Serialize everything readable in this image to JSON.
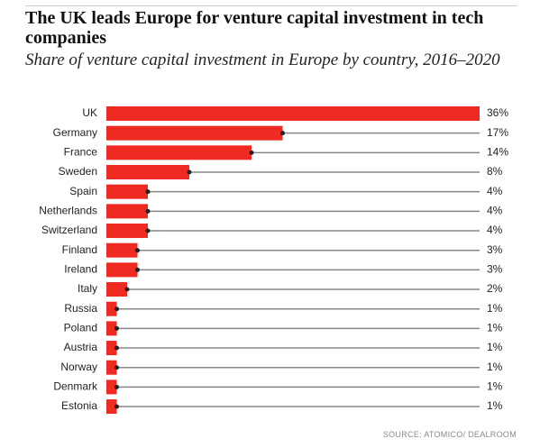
{
  "chart_data": {
    "type": "bar",
    "orientation": "horizontal",
    "title": "The UK leads Europe for venture capital investment in tech companies",
    "subtitle": "Share of venture capital investment in Europe by country, 2016–2020",
    "source": "SOURCE: ATOMICO/ DEALROOM",
    "categories": [
      "UK",
      "Germany",
      "France",
      "Sweden",
      "Spain",
      "Netherlands",
      "Switzerland",
      "Finland",
      "Ireland",
      "Italy",
      "Russia",
      "Poland",
      "Austria",
      "Norway",
      "Denmark",
      "Estonia"
    ],
    "values": [
      36,
      17,
      14,
      8,
      4,
      4,
      4,
      3,
      3,
      2,
      1,
      1,
      1,
      1,
      1,
      1
    ],
    "value_labels": [
      "36%",
      "17%",
      "14%",
      "8%",
      "4%",
      "4%",
      "4%",
      "3%",
      "3%",
      "2%",
      "1%",
      "1%",
      "1%",
      "1%",
      "1%",
      "1%"
    ],
    "color": "#ee2a22"
  }
}
